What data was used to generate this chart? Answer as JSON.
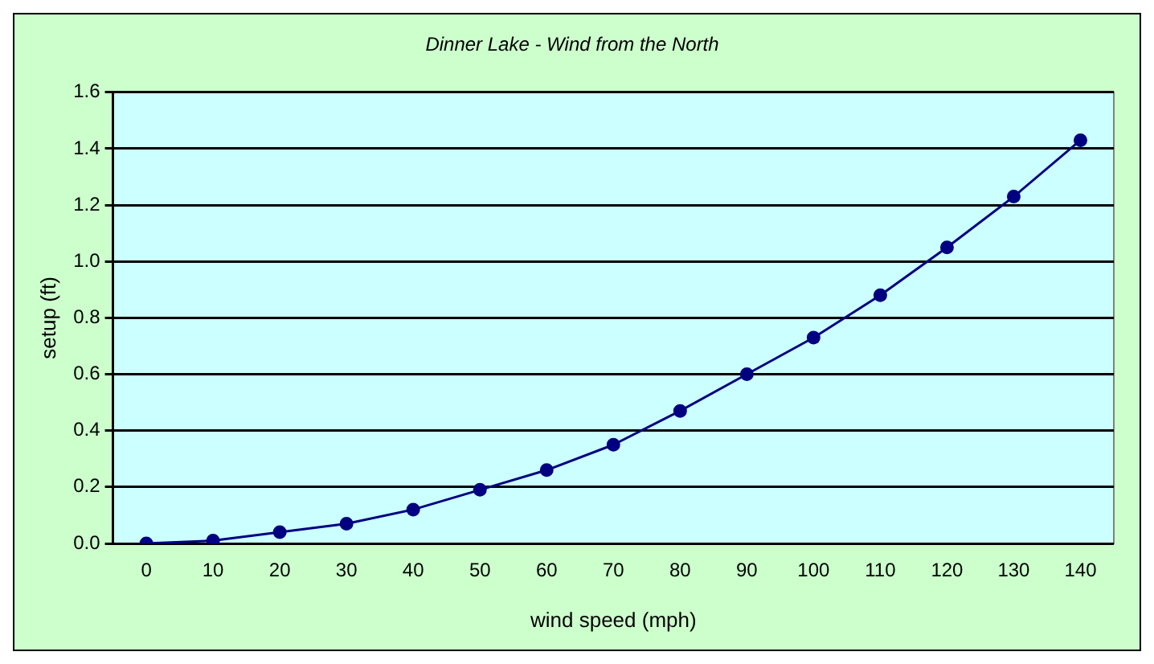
{
  "chart_data": {
    "type": "line",
    "title": "Dinner Lake - Wind from the North",
    "xlabel": "wind speed (mph)",
    "ylabel": "setup (ft)",
    "categories": [
      "0",
      "10",
      "20",
      "30",
      "40",
      "50",
      "60",
      "70",
      "80",
      "90",
      "100",
      "110",
      "120",
      "130",
      "140"
    ],
    "series": [
      {
        "color": "#000080",
        "values": [
          0,
          0.01,
          0.04,
          0.07,
          0.12,
          0.19,
          0.26,
          0.35,
          0.47,
          0.6,
          0.73,
          0.88,
          1.05,
          1.23,
          1.43
        ]
      }
    ],
    "ylim": [
      0,
      1.6
    ],
    "yticks": [
      {
        "value": 0,
        "label": "0.0"
      },
      {
        "value": 0.2,
        "label": "0.2"
      },
      {
        "value": 0.4,
        "label": "0.4"
      },
      {
        "value": 0.6,
        "label": "0.6"
      },
      {
        "value": 0.8,
        "label": "0.8"
      },
      {
        "value": 1,
        "label": "1.0"
      },
      {
        "value": 1.2,
        "label": "1.2"
      },
      {
        "value": 1.4,
        "label": "1.4"
      },
      {
        "value": 1.6,
        "label": "1.6"
      }
    ],
    "grid": "y",
    "legend": false,
    "marker": "circle",
    "line_style": "solid"
  }
}
